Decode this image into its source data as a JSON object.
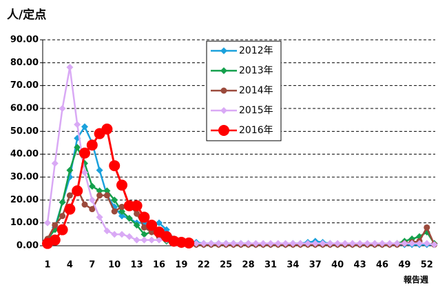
{
  "chart_data": {
    "type": "line",
    "title": "人/定点",
    "x_label": "報告週",
    "categories": [
      1,
      null,
      null,
      4,
      null,
      null,
      7,
      null,
      null,
      10,
      null,
      null,
      13,
      null,
      null,
      16,
      null,
      null,
      19,
      null,
      null,
      22,
      null,
      null,
      25,
      null,
      null,
      28,
      null,
      null,
      31,
      null,
      null,
      34,
      null,
      null,
      37,
      null,
      null,
      40,
      null,
      null,
      43,
      null,
      null,
      46,
      null,
      null,
      49,
      null,
      null,
      52,
      null
    ],
    "ylim": [
      0,
      90
    ],
    "yticks": [
      {
        "value": 0,
        "label": "0.00"
      },
      {
        "value": 10,
        "label": "10.00"
      },
      {
        "value": 20,
        "label": "20.00"
      },
      {
        "value": 30,
        "label": "30.00"
      },
      {
        "value": 40,
        "label": "40.00"
      },
      {
        "value": 50,
        "label": "50.00"
      },
      {
        "value": 60,
        "label": "60.00"
      },
      {
        "value": 70,
        "label": "70.00"
      },
      {
        "value": 80,
        "label": "80.00"
      },
      {
        "value": 90,
        "label": "90.00"
      }
    ],
    "grid": true,
    "legend": "upper center",
    "series": [
      {
        "name": "2012年",
        "color": "#1ba1dc",
        "marker": "diamond",
        "values": [
          2,
          8,
          19,
          30,
          47,
          52,
          45,
          33,
          22,
          17,
          13,
          12,
          10,
          10,
          8,
          10,
          7,
          3,
          2,
          1.5,
          1.5,
          1,
          1,
          1,
          1,
          1,
          1,
          1,
          0.5,
          0.5,
          0.5,
          0.5,
          0.5,
          1,
          1,
          1.5,
          2,
          1.5,
          1,
          0.5,
          0.5,
          0.5,
          0.5,
          0.5,
          0.5,
          0.5,
          0.5,
          0.5,
          0.5,
          0.5,
          0.5,
          0.5,
          0.5
        ]
      },
      {
        "name": "2013年",
        "color": "#14a04c",
        "marker": "diamond",
        "values": [
          3,
          7,
          19,
          33,
          43,
          36,
          26,
          24,
          24,
          20,
          15,
          12,
          9,
          5,
          6,
          4,
          2,
          1,
          0.5,
          0.5,
          0.5,
          0.5,
          0.5,
          0.5,
          0.5,
          0.5,
          0.5,
          0.5,
          0.5,
          0.5,
          0.5,
          0.5,
          0.5,
          0.5,
          0.5,
          0.5,
          0.5,
          0.5,
          0.5,
          0.5,
          0.5,
          0.5,
          0.5,
          0.5,
          0.5,
          0.5,
          0.5,
          1,
          2,
          3,
          4,
          6,
          1
        ]
      },
      {
        "name": "2014年",
        "color": "#9b4a3c",
        "marker": "circle",
        "values": [
          3,
          9,
          13,
          22,
          25,
          18,
          16,
          22,
          22,
          15,
          17,
          18,
          14,
          8,
          6,
          4,
          3,
          2,
          1,
          1,
          0.5,
          0.5,
          0.5,
          0.5,
          0.5,
          0.5,
          0.5,
          0.5,
          0.5,
          0.5,
          0.5,
          0.5,
          0.5,
          0.5,
          0.5,
          0.5,
          0.5,
          0.5,
          0.5,
          0.5,
          0.5,
          0.5,
          0.5,
          0.5,
          0.5,
          0.5,
          0.5,
          0.5,
          1,
          1.5,
          2,
          8,
          0.5
        ]
      },
      {
        "name": "2015年",
        "color": "#d9a9f5",
        "marker": "diamond",
        "values": [
          10,
          36,
          60,
          78,
          53,
          32,
          20,
          12.5,
          6.5,
          5,
          5,
          4,
          2.5,
          2.5,
          2.5,
          2.5,
          2.5,
          2,
          1.5,
          1.5,
          1,
          1,
          1,
          1,
          1,
          1,
          1,
          1,
          1,
          1,
          1,
          1,
          1,
          1,
          1,
          1,
          1,
          1,
          1,
          1,
          1,
          1,
          1,
          1,
          1,
          1,
          1,
          1,
          1,
          1,
          1,
          1,
          0.5
        ]
      },
      {
        "name": "2016年",
        "color": "#ff0000",
        "marker": "bigcircle",
        "values": [
          1,
          2.5,
          7,
          16,
          24,
          40.5,
          44,
          49,
          51,
          35,
          26.5,
          17.5,
          17.5,
          12.5,
          9,
          6,
          4,
          2,
          1.5,
          1.2,
          null,
          null,
          null,
          null,
          null,
          null,
          null,
          null,
          null,
          null,
          null,
          null,
          null,
          null,
          null,
          null,
          null,
          null,
          null,
          null,
          null,
          null,
          null,
          null,
          null,
          null,
          null,
          null,
          null,
          null,
          null,
          null,
          null
        ]
      }
    ]
  }
}
